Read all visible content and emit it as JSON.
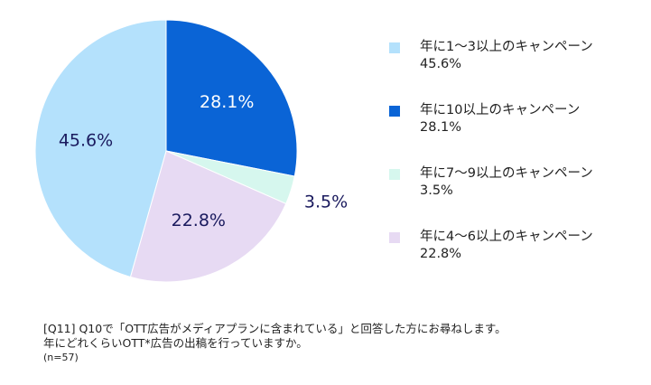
{
  "chart_data": {
    "type": "pie",
    "slices": [
      {
        "label": "年に10以上のキャンペーン",
        "value": 28.1,
        "display": "28.1%",
        "color": "#0a64d6",
        "label_color": "#ffffff"
      },
      {
        "label": "年に7〜9以上のキャンペーン",
        "value": 3.5,
        "display": "3.5%",
        "color": "#d6f7ee",
        "label_color": "#1a1a5e"
      },
      {
        "label": "年に4〜6以上のキャンペーン",
        "value": 22.8,
        "display": "22.8%",
        "color": "#e7daf3",
        "label_color": "#1a1a5e"
      },
      {
        "label": "年に1〜3以上のキャンペーン",
        "value": 45.6,
        "display": "45.6%",
        "color": "#b4e1fc",
        "label_color": "#1a1a5e"
      }
    ],
    "legend": [
      {
        "name": "年に1〜3以上のキャンペーン",
        "value": "45.6%",
        "color": "#b4e1fc"
      },
      {
        "name": "年に10以上のキャンペーン",
        "value": "28.1%",
        "color": "#0a64d6"
      },
      {
        "name": "年に7〜9以上のキャンペーン",
        "value": "3.5%",
        "color": "#d6f7ee"
      },
      {
        "name": "年に4〜6以上のキャンペーン",
        "value": "22.8%",
        "color": "#e7daf3"
      }
    ],
    "legend_position": "right"
  },
  "note": {
    "line1": "[Q11] Q10で「OTT広告がメディアプランに含まれている」と回答した方にお尋ねします。",
    "line2": "年にどれくらいOTT*広告の出稿を行っていますか。",
    "line3": "(n=57)"
  }
}
